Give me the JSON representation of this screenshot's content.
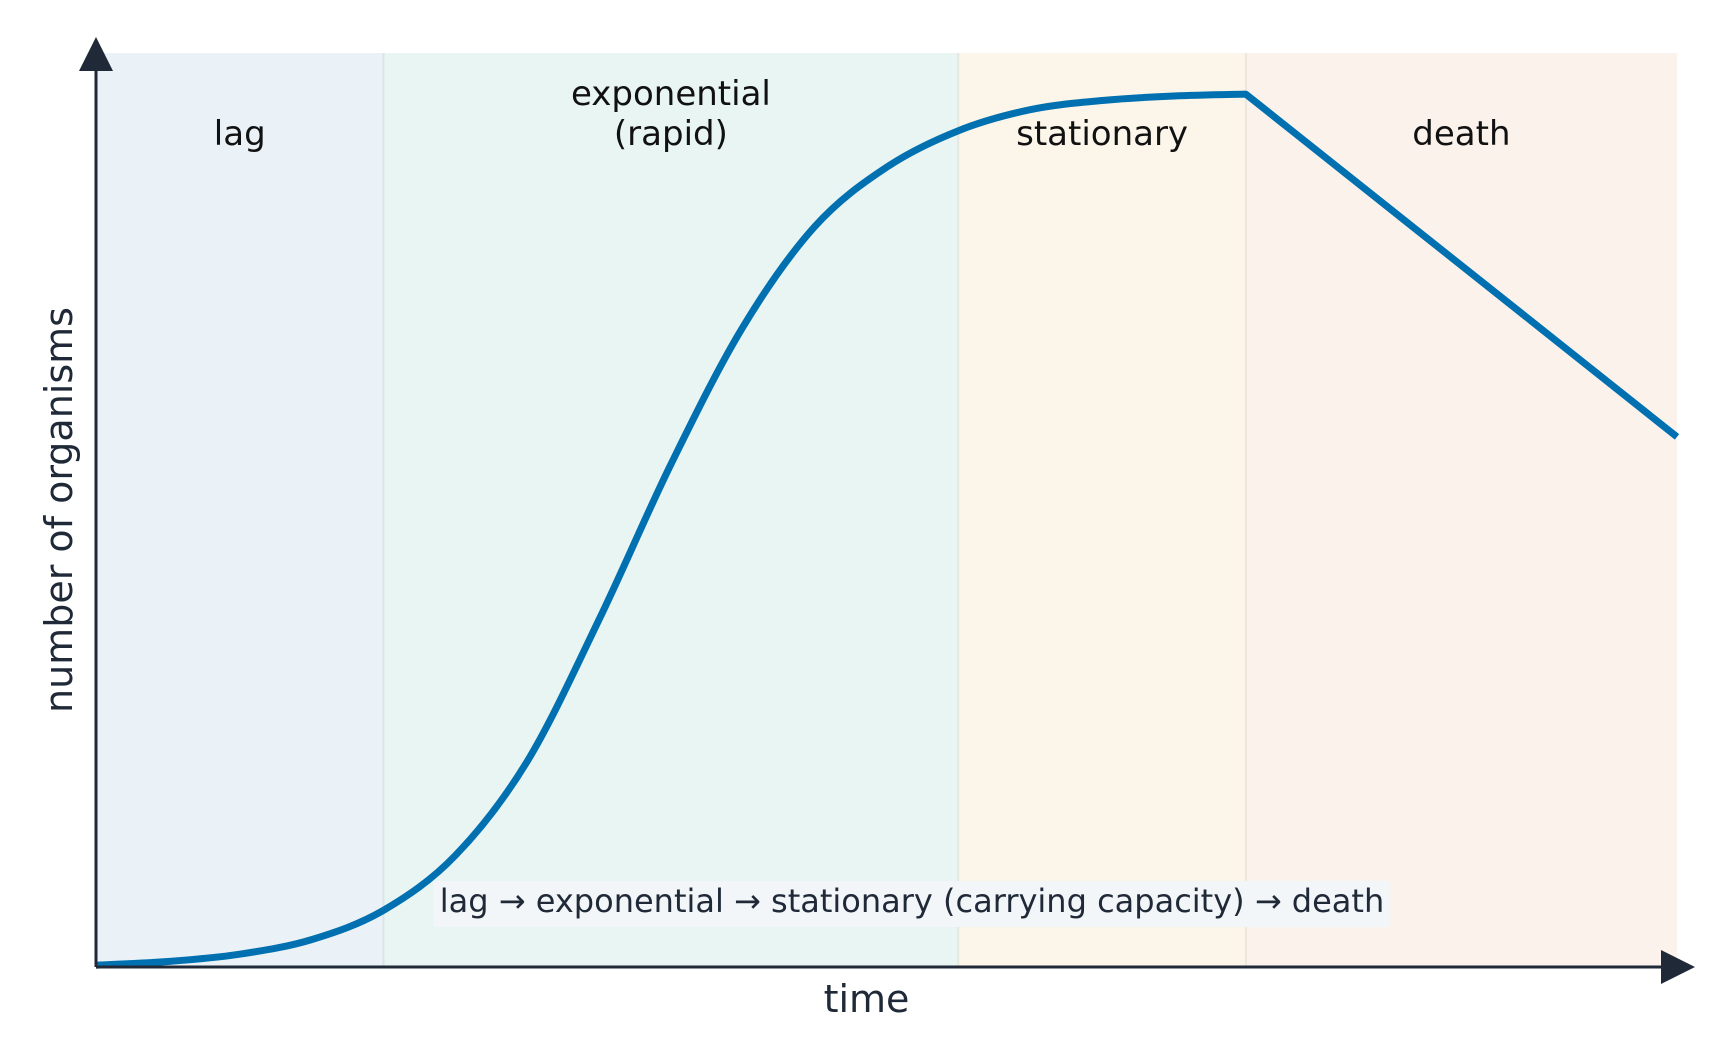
{
  "chart_data": {
    "type": "line",
    "title": "",
    "xlabel": "time",
    "ylabel": "number of organisms",
    "xlim": [
      0,
      11
    ],
    "ylim": [
      0,
      10
    ],
    "grid": false,
    "legend": "none",
    "phases": [
      {
        "name": "lag",
        "label_lines": [
          "lag"
        ],
        "x_start": 0,
        "x_end": 2,
        "color": "#eaf2f8"
      },
      {
        "name": "exponential",
        "label_lines": [
          "exponential",
          "(rapid)"
        ],
        "x_start": 2,
        "x_end": 6,
        "color": "#e8f5f3"
      },
      {
        "name": "stationary",
        "label_lines": [
          "stationary"
        ],
        "x_start": 6,
        "x_end": 8,
        "color": "#fcf6ea"
      },
      {
        "name": "death",
        "label_lines": [
          "death"
        ],
        "x_start": 8,
        "x_end": 11,
        "color": "#fbf2ec"
      }
    ],
    "series": [
      {
        "color": "#0070b0",
        "x": [
          0,
          0.5,
          1.0,
          1.5,
          2.0,
          2.5,
          3.0,
          3.5,
          4.0,
          4.5,
          5.0,
          5.5,
          6.0,
          6.5,
          7.0,
          7.5,
          8.0,
          9.0,
          10.0,
          11.0
        ],
        "y": [
          0.02,
          0.06,
          0.14,
          0.3,
          0.62,
          1.22,
          2.25,
          3.8,
          5.5,
          7.0,
          8.1,
          8.75,
          9.15,
          9.38,
          9.48,
          9.53,
          9.55,
          8.3,
          7.05,
          5.8
        ]
      }
    ],
    "caption": "lag  →  exponential  →  stationary (carrying capacity)  →  death",
    "axis_color": "#1f2937"
  }
}
